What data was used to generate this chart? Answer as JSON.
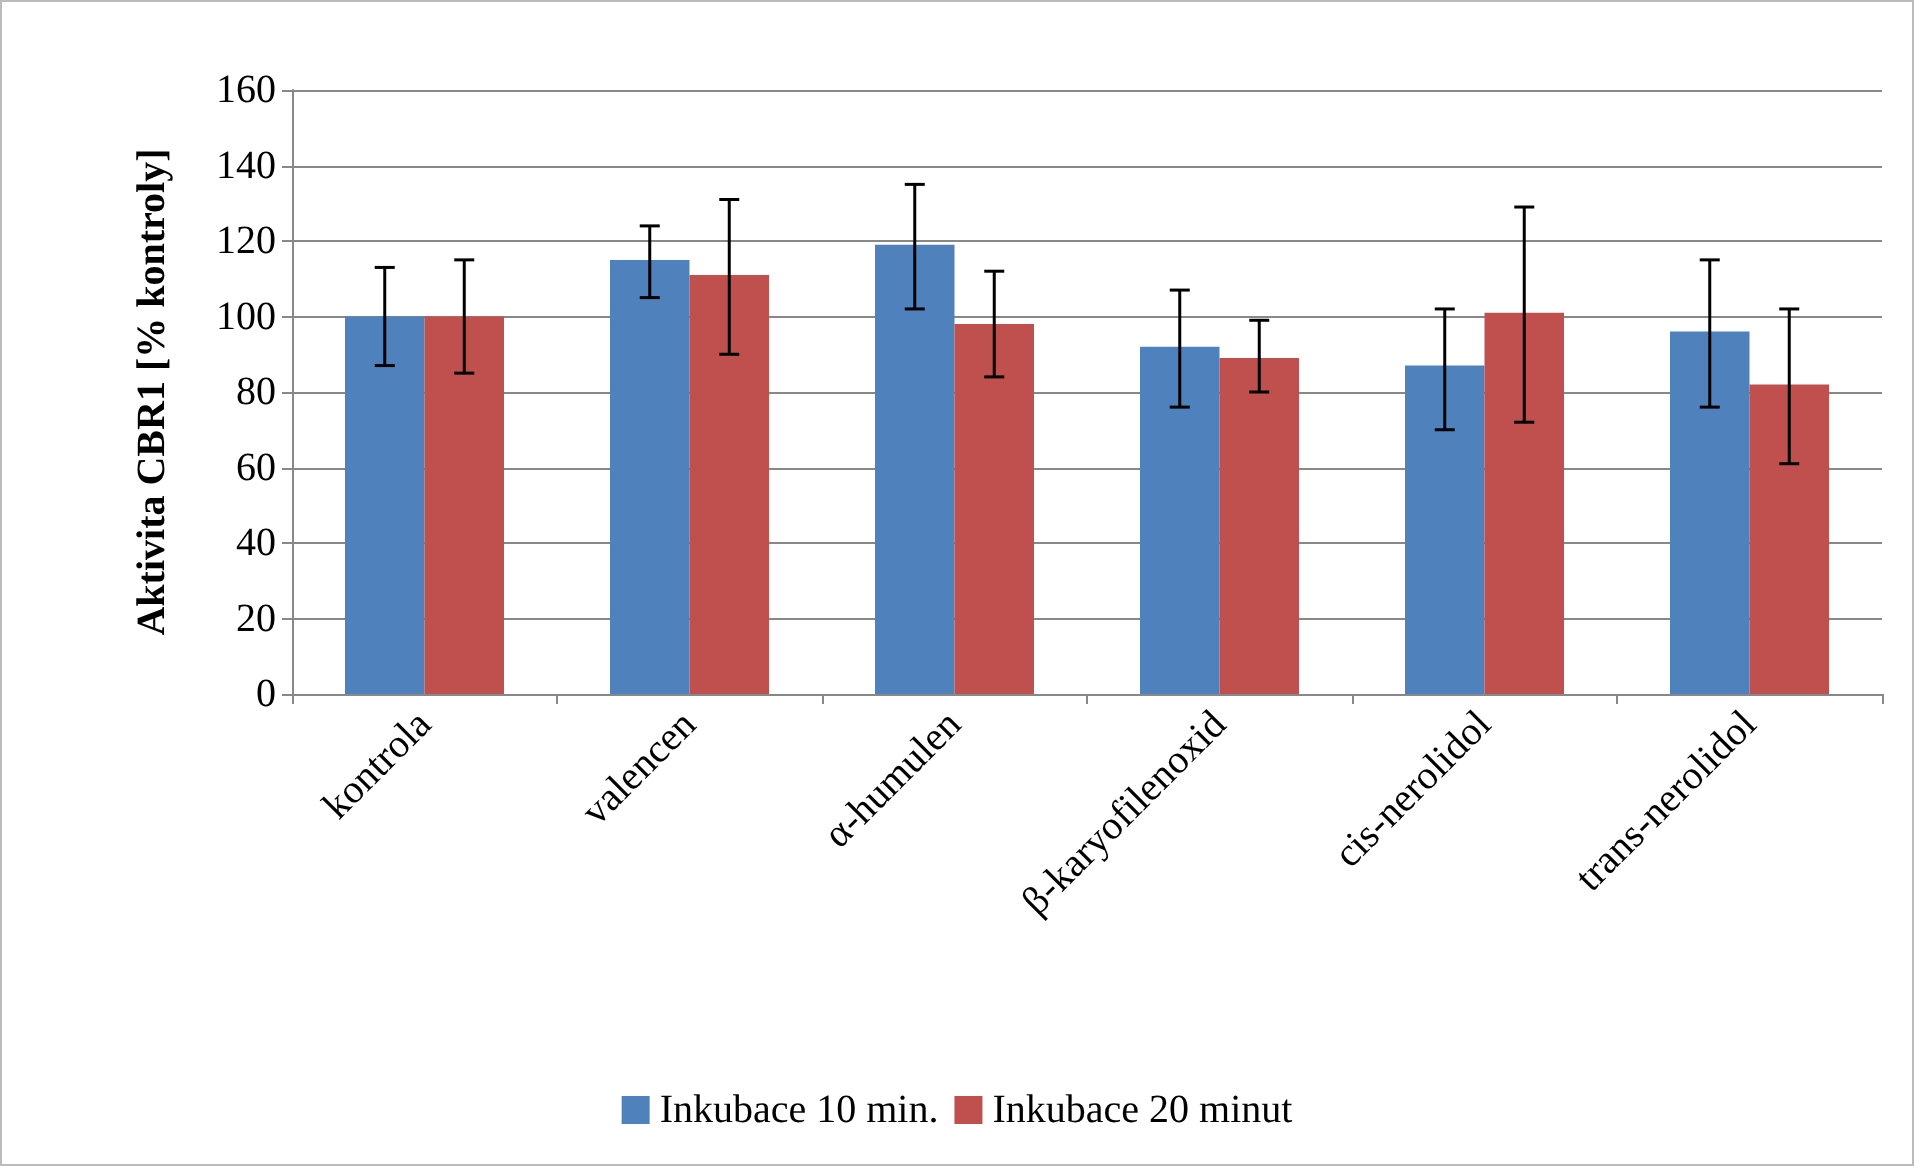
{
  "chart_data": {
    "type": "bar",
    "ylabel": "Aktivita CBR1 [% kontroly]",
    "categories": [
      "kontrola",
      "valencen",
      "α-humulen",
      "β-karyofilenoxid",
      "cis-nerolidol",
      "trans-nerolidol"
    ],
    "series": [
      {
        "name": "Inkubace 10 min.",
        "color": "#4f81bd",
        "values": [
          100,
          115,
          119,
          92,
          87,
          96
        ],
        "errors": [
          [
            87,
            113
          ],
          [
            105,
            124
          ],
          [
            102,
            135
          ],
          [
            76,
            107
          ],
          [
            70,
            102
          ],
          [
            76,
            115
          ]
        ]
      },
      {
        "name": "Inkubace 20 minut",
        "color": "#c0504d",
        "values": [
          100,
          111,
          98,
          89,
          101,
          82
        ],
        "errors": [
          [
            85,
            115
          ],
          [
            90,
            131
          ],
          [
            84,
            112
          ],
          [
            80,
            99
          ],
          [
            72,
            129
          ],
          [
            61,
            102
          ]
        ]
      }
    ],
    "ylim": [
      0,
      160
    ],
    "yticks": [
      0,
      20,
      40,
      60,
      80,
      100,
      120,
      140,
      160
    ],
    "grid": "y",
    "legend": "bottom"
  }
}
